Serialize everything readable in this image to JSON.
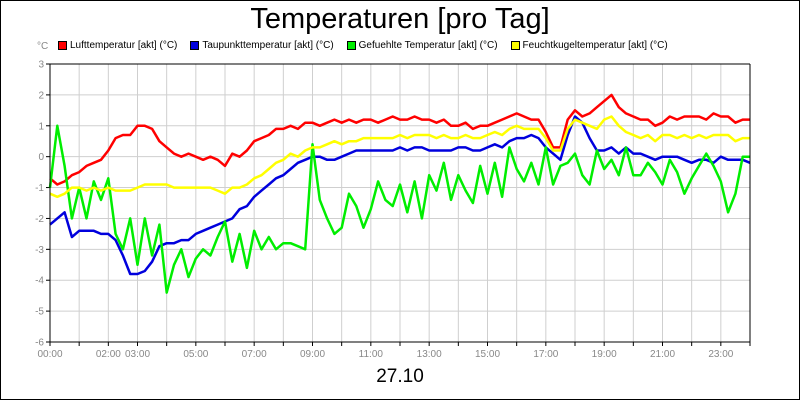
{
  "chart_data": {
    "type": "line",
    "title": "Temperaturen [pro Tag]",
    "xlabel": "27.10",
    "ylabel_unit": "°C",
    "ylim": [
      -6,
      3
    ],
    "y_ticks": [
      "-6",
      "-5",
      "-4",
      "-3",
      "-2",
      "-1",
      "0",
      "1",
      "2",
      "3"
    ],
    "xlim_hours": [
      0,
      24
    ],
    "x_ticks": [
      "00:00",
      "02:00",
      "03:00",
      "05:00",
      "07:00",
      "09:00",
      "11:00",
      "13:00",
      "15:00",
      "17:00",
      "19:00",
      "21:00",
      "23:00"
    ],
    "grid": true,
    "legend_position": "top",
    "series": [
      {
        "name": "Lufttemperatur [akt] (°C)",
        "color": "#ff0000",
        "x": [
          0.0,
          0.25,
          0.5,
          0.75,
          1.0,
          1.25,
          1.5,
          1.75,
          2.0,
          2.25,
          2.5,
          2.75,
          3.0,
          3.25,
          3.5,
          3.75,
          4.0,
          4.25,
          4.5,
          4.75,
          5.0,
          5.25,
          5.5,
          5.75,
          6.0,
          6.25,
          6.5,
          6.75,
          7.0,
          7.25,
          7.5,
          7.75,
          8.0,
          8.25,
          8.5,
          8.75,
          9.0,
          9.25,
          9.5,
          9.75,
          10.0,
          10.25,
          10.5,
          10.75,
          11.0,
          11.25,
          11.5,
          11.75,
          12.0,
          12.25,
          12.5,
          12.75,
          13.0,
          13.25,
          13.5,
          13.75,
          14.0,
          14.25,
          14.5,
          14.75,
          15.0,
          15.25,
          15.5,
          15.75,
          16.0,
          16.25,
          16.5,
          16.75,
          17.0,
          17.25,
          17.5,
          17.75,
          18.0,
          18.25,
          18.5,
          18.75,
          19.0,
          19.25,
          19.5,
          19.75,
          20.0,
          20.25,
          20.5,
          20.75,
          21.0,
          21.25,
          21.5,
          21.75,
          22.0,
          22.25,
          22.5,
          22.75,
          23.0,
          23.25,
          23.5,
          23.75,
          24.0
        ],
        "values": [
          -0.7,
          -0.9,
          -0.8,
          -0.6,
          -0.5,
          -0.3,
          -0.2,
          -0.1,
          0.2,
          0.6,
          0.7,
          0.7,
          1.0,
          1.0,
          0.9,
          0.5,
          0.3,
          0.1,
          0.0,
          0.1,
          0.0,
          -0.1,
          0.0,
          -0.1,
          -0.3,
          0.1,
          0.0,
          0.2,
          0.5,
          0.6,
          0.7,
          0.9,
          0.9,
          1.0,
          0.9,
          1.1,
          1.1,
          1.0,
          1.1,
          1.2,
          1.1,
          1.2,
          1.1,
          1.2,
          1.2,
          1.1,
          1.2,
          1.3,
          1.2,
          1.2,
          1.3,
          1.2,
          1.2,
          1.1,
          1.2,
          1.0,
          1.0,
          1.1,
          0.9,
          1.0,
          1.0,
          1.1,
          1.2,
          1.3,
          1.4,
          1.3,
          1.2,
          1.2,
          0.8,
          0.3,
          0.3,
          1.2,
          1.5,
          1.3,
          1.4,
          1.6,
          1.8,
          2.0,
          1.6,
          1.4,
          1.3,
          1.2,
          1.2,
          1.0,
          1.1,
          1.3,
          1.2,
          1.3,
          1.3,
          1.3,
          1.2,
          1.4,
          1.3,
          1.3,
          1.1,
          1.2,
          1.2
        ]
      },
      {
        "name": "Taupunkttemperatur [akt] (°C)",
        "color": "#0000dd",
        "x": [
          0.0,
          0.25,
          0.5,
          0.75,
          1.0,
          1.25,
          1.5,
          1.75,
          2.0,
          2.25,
          2.5,
          2.75,
          3.0,
          3.25,
          3.5,
          3.75,
          4.0,
          4.25,
          4.5,
          4.75,
          5.0,
          5.25,
          5.5,
          5.75,
          6.0,
          6.25,
          6.5,
          6.75,
          7.0,
          7.25,
          7.5,
          7.75,
          8.0,
          8.25,
          8.5,
          8.75,
          9.0,
          9.25,
          9.5,
          9.75,
          10.0,
          10.25,
          10.5,
          10.75,
          11.0,
          11.25,
          11.5,
          11.75,
          12.0,
          12.25,
          12.5,
          12.75,
          13.0,
          13.25,
          13.5,
          13.75,
          14.0,
          14.25,
          14.5,
          14.75,
          15.0,
          15.25,
          15.5,
          15.75,
          16.0,
          16.25,
          16.5,
          16.75,
          17.0,
          17.25,
          17.5,
          17.75,
          18.0,
          18.25,
          18.5,
          18.75,
          19.0,
          19.25,
          19.5,
          19.75,
          20.0,
          20.25,
          20.5,
          20.75,
          21.0,
          21.25,
          21.5,
          21.75,
          22.0,
          22.25,
          22.5,
          22.75,
          23.0,
          23.25,
          23.5,
          23.75,
          24.0
        ],
        "values": [
          -2.2,
          -2.0,
          -1.8,
          -2.6,
          -2.4,
          -2.4,
          -2.4,
          -2.5,
          -2.5,
          -2.7,
          -3.2,
          -3.8,
          -3.8,
          -3.7,
          -3.4,
          -2.9,
          -2.8,
          -2.8,
          -2.7,
          -2.7,
          -2.5,
          -2.4,
          -2.3,
          -2.2,
          -2.1,
          -2.0,
          -1.7,
          -1.6,
          -1.3,
          -1.1,
          -0.9,
          -0.7,
          -0.6,
          -0.4,
          -0.2,
          -0.1,
          0.0,
          0.0,
          -0.1,
          -0.1,
          0.0,
          0.1,
          0.2,
          0.2,
          0.2,
          0.2,
          0.2,
          0.2,
          0.3,
          0.2,
          0.3,
          0.3,
          0.2,
          0.2,
          0.2,
          0.2,
          0.3,
          0.3,
          0.2,
          0.2,
          0.3,
          0.4,
          0.3,
          0.5,
          0.6,
          0.6,
          0.7,
          0.6,
          0.3,
          0.1,
          -0.1,
          0.7,
          1.3,
          1.1,
          0.6,
          0.2,
          0.2,
          0.3,
          0.1,
          0.3,
          0.1,
          0.1,
          0.0,
          -0.1,
          0.0,
          0.0,
          0.0,
          -0.1,
          -0.2,
          -0.1,
          -0.1,
          -0.2,
          0.0,
          -0.1,
          -0.1,
          -0.1,
          -0.2
        ]
      },
      {
        "name": "Gefuehlte Temperatur [akt] (°C)",
        "color": "#00ee00",
        "x": [
          0.0,
          0.25,
          0.5,
          0.75,
          1.0,
          1.25,
          1.5,
          1.75,
          2.0,
          2.25,
          2.5,
          2.75,
          3.0,
          3.25,
          3.5,
          3.75,
          4.0,
          4.25,
          4.5,
          4.75,
          5.0,
          5.25,
          5.5,
          5.75,
          6.0,
          6.25,
          6.5,
          6.75,
          7.0,
          7.25,
          7.5,
          7.75,
          8.0,
          8.25,
          8.5,
          8.75,
          9.0,
          9.25,
          9.5,
          9.75,
          10.0,
          10.25,
          10.5,
          10.75,
          11.0,
          11.25,
          11.5,
          11.75,
          12.0,
          12.25,
          12.5,
          12.75,
          13.0,
          13.25,
          13.5,
          13.75,
          14.0,
          14.25,
          14.5,
          14.75,
          15.0,
          15.25,
          15.5,
          15.75,
          16.0,
          16.25,
          16.5,
          16.75,
          17.0,
          17.25,
          17.5,
          17.75,
          18.0,
          18.25,
          18.5,
          18.75,
          19.0,
          19.25,
          19.5,
          19.75,
          20.0,
          20.25,
          20.5,
          20.75,
          21.0,
          21.25,
          21.5,
          21.75,
          22.0,
          22.25,
          22.5,
          22.75,
          23.0,
          23.25,
          23.5,
          23.75,
          24.0
        ],
        "values": [
          -1.0,
          1.0,
          -0.3,
          -2.0,
          -1.0,
          -2.0,
          -0.8,
          -1.4,
          -0.7,
          -2.5,
          -3.0,
          -2.0,
          -3.5,
          -2.0,
          -3.2,
          -2.2,
          -4.4,
          -3.5,
          -3.0,
          -3.9,
          -3.3,
          -3.0,
          -3.2,
          -2.6,
          -2.1,
          -3.4,
          -2.5,
          -3.6,
          -2.4,
          -3.0,
          -2.6,
          -3.0,
          -2.8,
          -2.8,
          -2.9,
          -3.0,
          0.4,
          -1.4,
          -2.0,
          -2.5,
          -2.3,
          -1.2,
          -1.6,
          -2.3,
          -1.7,
          -0.8,
          -1.4,
          -1.6,
          -0.9,
          -1.8,
          -0.8,
          -2.0,
          -0.6,
          -1.1,
          -0.2,
          -1.4,
          -0.6,
          -1.1,
          -1.5,
          -0.3,
          -1.2,
          -0.2,
          -1.3,
          0.3,
          -0.4,
          -0.8,
          -0.2,
          -0.9,
          0.3,
          -0.9,
          -0.3,
          -0.2,
          0.1,
          -0.6,
          -0.9,
          0.2,
          -0.4,
          -0.1,
          -0.6,
          0.3,
          -0.6,
          -0.6,
          -0.2,
          -0.5,
          -0.9,
          -0.1,
          -0.5,
          -1.2,
          -0.7,
          -0.3,
          0.1,
          -0.3,
          -0.8,
          -1.8,
          -1.2,
          0.0,
          0.0
        ]
      },
      {
        "name": "Feuchtkugeltemperatur [akt] (°C)",
        "color": "#ffff00",
        "x": [
          0.0,
          0.25,
          0.5,
          0.75,
          1.0,
          1.25,
          1.5,
          1.75,
          2.0,
          2.25,
          2.5,
          2.75,
          3.0,
          3.25,
          3.5,
          3.75,
          4.0,
          4.25,
          4.5,
          4.75,
          5.0,
          5.25,
          5.5,
          5.75,
          6.0,
          6.25,
          6.5,
          6.75,
          7.0,
          7.25,
          7.5,
          7.75,
          8.0,
          8.25,
          8.5,
          8.75,
          9.0,
          9.25,
          9.5,
          9.75,
          10.0,
          10.25,
          10.5,
          10.75,
          11.0,
          11.25,
          11.5,
          11.75,
          12.0,
          12.25,
          12.5,
          12.75,
          13.0,
          13.25,
          13.5,
          13.75,
          14.0,
          14.25,
          14.5,
          14.75,
          15.0,
          15.25,
          15.5,
          15.75,
          16.0,
          16.25,
          16.5,
          16.75,
          17.0,
          17.25,
          17.5,
          17.75,
          18.0,
          18.25,
          18.5,
          18.75,
          19.0,
          19.25,
          19.5,
          19.75,
          20.0,
          20.25,
          20.5,
          20.75,
          21.0,
          21.25,
          21.5,
          21.75,
          22.0,
          22.25,
          22.5,
          22.75,
          23.0,
          23.25,
          23.5,
          23.75,
          24.0
        ],
        "values": [
          -1.2,
          -1.3,
          -1.2,
          -1.0,
          -1.0,
          -1.1,
          -1.0,
          -1.1,
          -1.0,
          -1.1,
          -1.1,
          -1.1,
          -1.0,
          -0.9,
          -0.9,
          -0.9,
          -0.9,
          -1.0,
          -1.0,
          -1.0,
          -1.0,
          -1.0,
          -1.0,
          -1.1,
          -1.2,
          -1.0,
          -1.0,
          -0.9,
          -0.7,
          -0.6,
          -0.4,
          -0.2,
          -0.1,
          0.1,
          0.0,
          0.2,
          0.3,
          0.3,
          0.4,
          0.5,
          0.4,
          0.5,
          0.5,
          0.6,
          0.6,
          0.6,
          0.6,
          0.6,
          0.7,
          0.6,
          0.7,
          0.7,
          0.7,
          0.6,
          0.7,
          0.6,
          0.6,
          0.7,
          0.6,
          0.6,
          0.7,
          0.8,
          0.7,
          0.9,
          1.0,
          0.9,
          0.9,
          0.9,
          0.6,
          0.2,
          0.2,
          0.9,
          1.2,
          1.1,
          1.0,
          0.9,
          1.2,
          1.3,
          1.0,
          0.8,
          0.7,
          0.6,
          0.7,
          0.5,
          0.7,
          0.7,
          0.6,
          0.7,
          0.6,
          0.7,
          0.6,
          0.7,
          0.7,
          0.7,
          0.5,
          0.6,
          0.6
        ]
      }
    ]
  }
}
